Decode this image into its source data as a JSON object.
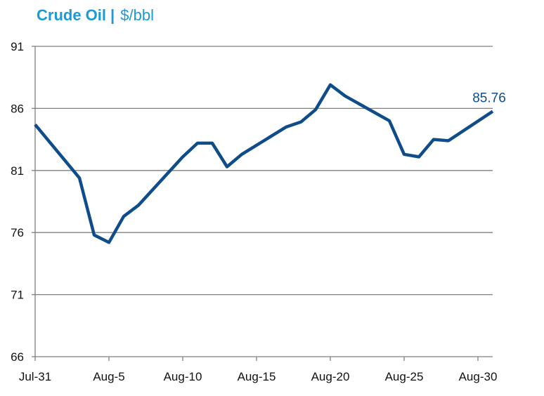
{
  "title": {
    "main": "Crude Oil",
    "separator": "|",
    "unit": "$/bbl"
  },
  "colors": {
    "title": "#1a9ad6",
    "line": "#0f4c8a",
    "grid": "#7f7f7f",
    "axis": "#7f7f7f"
  },
  "chart_data": {
    "type": "line",
    "title": "Crude Oil | $/bbl",
    "xlabel": "",
    "ylabel": "",
    "ylim": [
      66,
      91
    ],
    "yticks": [
      66,
      71,
      76,
      81,
      86,
      91
    ],
    "xticks": [
      "Jul-31",
      "Aug-5",
      "Aug-10",
      "Aug-15",
      "Aug-20",
      "Aug-25",
      "Aug-30"
    ],
    "xlim": [
      "Jul-31",
      "Aug-31"
    ],
    "grid": true,
    "series": [
      {
        "x": [
          "Jul-31",
          "Aug-3",
          "Aug-4",
          "Aug-5",
          "Aug-6",
          "Aug-7",
          "Aug-10",
          "Aug-11",
          "Aug-12",
          "Aug-13",
          "Aug-14",
          "Aug-17",
          "Aug-18",
          "Aug-19",
          "Aug-20",
          "Aug-21",
          "Aug-24",
          "Aug-25",
          "Aug-26",
          "Aug-27",
          "Aug-28",
          "Aug-31"
        ],
        "values": [
          84.7,
          80.4,
          75.8,
          75.2,
          77.3,
          78.2,
          82.1,
          83.2,
          83.2,
          81.3,
          82.3,
          84.5,
          84.9,
          85.9,
          87.9,
          87.0,
          85.0,
          82.3,
          82.1,
          83.5,
          83.4,
          85.76
        ]
      }
    ],
    "data_labels": [
      {
        "x": "Aug-31",
        "text": "85.76"
      }
    ]
  }
}
